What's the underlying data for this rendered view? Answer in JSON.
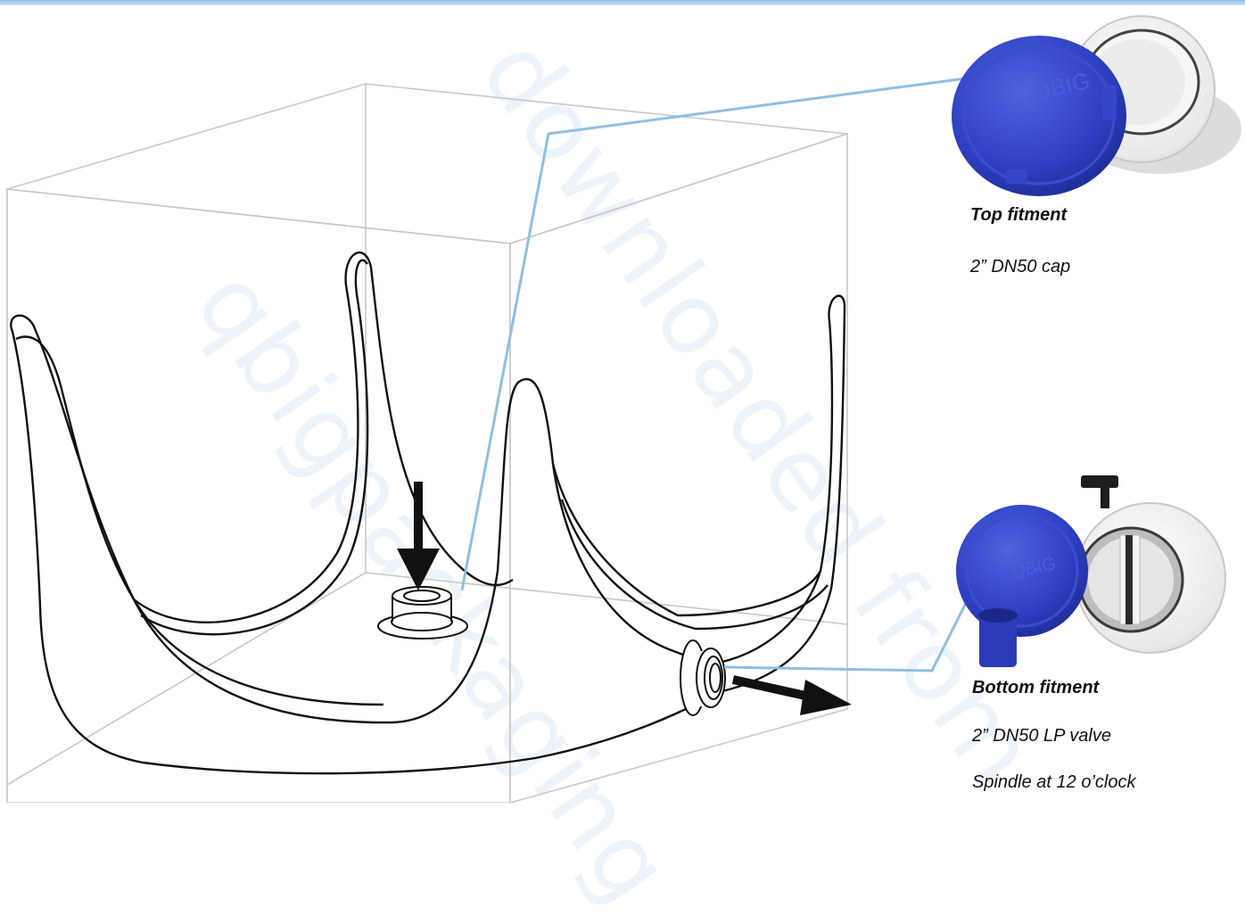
{
  "top_fitment": {
    "title": "Top fitment",
    "spec": "2” DN50 cap",
    "cap_logo": "QBIG"
  },
  "bottom_fitment": {
    "title": "Bottom fitment",
    "spec": "2” DN50 LP valve",
    "spindle": "Spindle at 12 o’clock",
    "cap_logo": "QBIG"
  },
  "watermark": {
    "line1": "qbigpackaging",
    "line2": "downloaded from"
  },
  "colors": {
    "leader_line": "#8fbfe3",
    "cap_blue": "#2d3fc0",
    "valve_white": "#f4f4f4",
    "cube_edge": "#c8c8c8",
    "bag_outline": "#111111"
  },
  "icons": [
    "down-arrow-icon",
    "right-arrow-icon"
  ]
}
